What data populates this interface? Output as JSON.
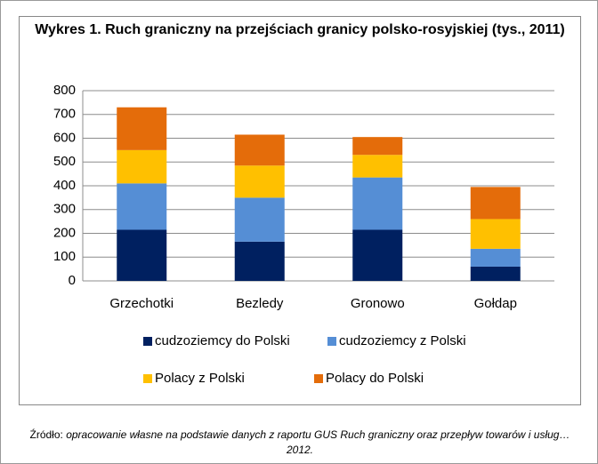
{
  "chart_data": {
    "type": "stacked_bar",
    "title": "Wykres 1. Ruch graniczny na przejściach granicy polsko-rosyjskiej (tys., 2011)",
    "categories": [
      "Grzechotki",
      "Bezledy",
      "Gronowo",
      "Gołdap"
    ],
    "series": [
      {
        "name": "cudzoziemcy do Polski",
        "color": "#002060",
        "values": [
          215,
          165,
          215,
          60
        ]
      },
      {
        "name": "cudzoziemcy z Polski",
        "color": "#558ed5",
        "values": [
          195,
          185,
          220,
          75
        ]
      },
      {
        "name": "Polacy z Polski",
        "color": "#ffc000",
        "values": [
          140,
          135,
          95,
          125
        ]
      },
      {
        "name": "Polacy do Polski",
        "color": "#e46c0a",
        "values": [
          180,
          130,
          75,
          135
        ]
      }
    ],
    "ylim": [
      0,
      800
    ],
    "yticks": [
      0,
      100,
      200,
      300,
      400,
      500,
      600,
      700,
      800
    ],
    "grid": true
  },
  "source": {
    "prefix": "Źródło:",
    "text": "opracowanie własne na podstawie danych z raportu GUS Ruch graniczny oraz przepływ towarów i usług…2012."
  }
}
